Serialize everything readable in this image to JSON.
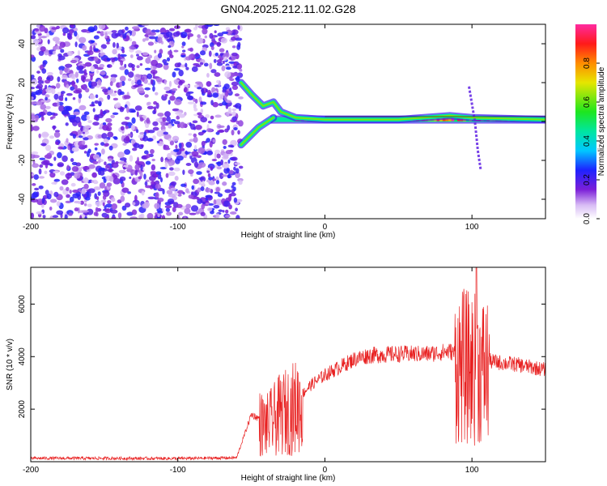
{
  "title": "GN04.2025.212.11.02.G28",
  "chart_data": [
    {
      "type": "heatmap",
      "xlabel": "Height of straight line (km)",
      "ylabel": "Frequency (Hz)",
      "xlim": [
        -200,
        150
      ],
      "ylim": [
        -50,
        50
      ],
      "xticks": [
        -200,
        -100,
        0,
        100
      ],
      "yticks": [
        -40,
        -20,
        0,
        20,
        40
      ],
      "colorbar": {
        "label": "Normalized spectral amplitude",
        "range": [
          0,
          1
        ],
        "ticks": [
          "0.0",
          "0.2",
          "0.4",
          "0.6",
          "0.8"
        ],
        "colormap": "white-purple-blue-cyan-green-yellow-red-magenta"
      },
      "regions": [
        {
          "x": [
            -200,
            -57
          ],
          "description_key": "noise",
          "amplitude": [
            0.05,
            0.25
          ]
        },
        {
          "x": [
            -57,
            150
          ],
          "center_frequency": 1,
          "amplitude": [
            0.4,
            1.0
          ]
        }
      ],
      "line_track": [
        {
          "x": -57,
          "y": 20
        },
        {
          "x": -50,
          "y": 14
        },
        {
          "x": -42,
          "y": 8
        },
        {
          "x": -35,
          "y": 10
        },
        {
          "x": -30,
          "y": 5
        },
        {
          "x": -20,
          "y": 2
        },
        {
          "x": 0,
          "y": 1
        },
        {
          "x": 50,
          "y": 1
        },
        {
          "x": 85,
          "y": 3
        },
        {
          "x": 100,
          "y": 2
        },
        {
          "x": 150,
          "y": 1
        }
      ],
      "branch_track": [
        {
          "x": -57,
          "y": -12
        },
        {
          "x": -45,
          "y": -3
        },
        {
          "x": -35,
          "y": 2
        }
      ],
      "spike": [
        {
          "x": 98,
          "y": 18
        },
        {
          "x": 102,
          "y": 0
        },
        {
          "x": 104,
          "y": -15
        },
        {
          "x": 106,
          "y": -25
        }
      ],
      "grid": false,
      "legend": "colorbar-right"
    },
    {
      "type": "line",
      "xlabel": "Height of straight line (km)",
      "ylabel": "SNR (10 * v/v)",
      "xlim": [
        -200,
        150
      ],
      "ylim": [
        0,
        7400
      ],
      "xticks": [
        -200,
        -100,
        0,
        100
      ],
      "yticks": [
        2000,
        4000,
        6000
      ],
      "color": "#e82020",
      "envelope": [
        {
          "x": -200,
          "y": 130
        },
        {
          "x": -150,
          "y": 130
        },
        {
          "x": -100,
          "y": 120
        },
        {
          "x": -60,
          "y": 150
        },
        {
          "x": -50,
          "y": 1800
        },
        {
          "x": -40,
          "y": 1500
        },
        {
          "x": -30,
          "y": 2000
        },
        {
          "x": -20,
          "y": 2300
        },
        {
          "x": -10,
          "y": 2900
        },
        {
          "x": 0,
          "y": 3300
        },
        {
          "x": 10,
          "y": 3600
        },
        {
          "x": 20,
          "y": 3900
        },
        {
          "x": 30,
          "y": 4050
        },
        {
          "x": 50,
          "y": 4100
        },
        {
          "x": 70,
          "y": 4100
        },
        {
          "x": 85,
          "y": 4200
        },
        {
          "x": 95,
          "y": 4000
        },
        {
          "x": 105,
          "y": 3900
        },
        {
          "x": 115,
          "y": 3800
        },
        {
          "x": 130,
          "y": 3700
        },
        {
          "x": 150,
          "y": 3500
        }
      ],
      "peak": {
        "x": 103,
        "y": 7400
      },
      "grid": false
    }
  ]
}
